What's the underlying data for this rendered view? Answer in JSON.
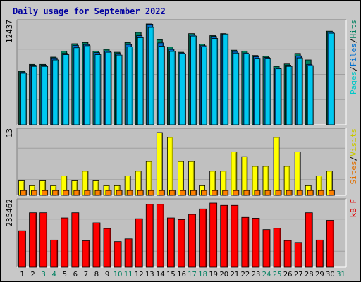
{
  "title": "Daily usage for September 2022",
  "chart_data": [
    {
      "type": "bar",
      "panel": "hits-files-pages",
      "categories": [
        "1",
        "2",
        "3",
        "4",
        "5",
        "6",
        "7",
        "8",
        "9",
        "10",
        "11",
        "12",
        "13",
        "14",
        "15",
        "16",
        "17",
        "18",
        "19",
        "20",
        "21",
        "22",
        "23",
        "24",
        "25",
        "26",
        "27",
        "28",
        "29",
        "30",
        "31"
      ],
      "max_label": "12437",
      "ylim": [
        0,
        12437
      ],
      "legend": [
        {
          "text": "Pages",
          "color": "#00c8c8"
        },
        {
          "text": "/",
          "color": "#000000"
        },
        {
          "text": "Files",
          "color": "#0070d0"
        },
        {
          "text": "/",
          "color": "#000000"
        },
        {
          "text": "Hits",
          "color": "#008060"
        }
      ],
      "series": [
        {
          "name": "Hits",
          "color": "#008060",
          "values": [
            6600,
            7450,
            7450,
            8350,
            9100,
            10000,
            10150,
            9100,
            9300,
            8950,
            10150,
            11400,
            12437,
            10500,
            9600,
            8950,
            11250,
            9950,
            11000,
            11250,
            9200,
            9100,
            8550,
            8450,
            7200,
            7500,
            8800,
            8000,
            null,
            11550,
            null
          ]
        },
        {
          "name": "Files",
          "color": "#0070d0",
          "values": [
            6500,
            7350,
            7350,
            8250,
            8800,
            9800,
            9900,
            8900,
            9100,
            8800,
            9900,
            11000,
            12400,
            10100,
            9300,
            8850,
            11100,
            9750,
            10900,
            11150,
            9050,
            8850,
            8400,
            8300,
            7000,
            7350,
            8500,
            7450,
            null,
            11450,
            null
          ]
        },
        {
          "name": "Pages",
          "color": "#00c8f0",
          "values": [
            6350,
            7200,
            7200,
            8000,
            8650,
            9500,
            9750,
            8650,
            8950,
            8600,
            9600,
            10750,
            12000,
            9700,
            9050,
            8750,
            10950,
            9600,
            10650,
            11200,
            8850,
            8750,
            8200,
            8200,
            6900,
            7200,
            8250,
            7300,
            null,
            11300,
            null
          ]
        }
      ]
    },
    {
      "type": "bar",
      "panel": "visits-sites",
      "categories": [
        "1",
        "2",
        "3",
        "4",
        "5",
        "6",
        "7",
        "8",
        "9",
        "10",
        "11",
        "12",
        "13",
        "14",
        "15",
        "16",
        "17",
        "18",
        "19",
        "20",
        "21",
        "22",
        "23",
        "24",
        "25",
        "26",
        "27",
        "28",
        "29",
        "30",
        "31"
      ],
      "max_label": "13",
      "ylim": [
        0,
        13
      ],
      "legend": [
        {
          "text": "Sites",
          "color": "#e07000"
        },
        {
          "text": "/",
          "color": "#000000"
        },
        {
          "text": "Visits",
          "color": "#c8c800"
        }
      ],
      "series": [
        {
          "name": "Visits",
          "color": "#ffff00",
          "values": [
            3,
            2,
            3,
            2,
            4,
            3,
            5,
            3,
            2,
            2,
            4,
            5,
            7,
            13,
            12,
            7,
            7,
            2,
            5,
            5,
            9,
            8,
            6,
            6,
            12,
            6,
            9,
            2,
            4,
            5,
            null
          ]
        },
        {
          "name": "Sites",
          "color": "#ff8000",
          "values": [
            1,
            1,
            1,
            1,
            1,
            1,
            1,
            1,
            1,
            1,
            1,
            1,
            1,
            1,
            1,
            1,
            1,
            1,
            1,
            1,
            1,
            1,
            1,
            1,
            1,
            1,
            1,
            1,
            1,
            1,
            null
          ]
        }
      ]
    },
    {
      "type": "bar",
      "panel": "kbytes",
      "categories": [
        "1",
        "2",
        "3",
        "4",
        "5",
        "6",
        "7",
        "8",
        "9",
        "10",
        "11",
        "12",
        "13",
        "14",
        "15",
        "16",
        "17",
        "18",
        "19",
        "20",
        "21",
        "22",
        "23",
        "24",
        "25",
        "26",
        "27",
        "28",
        "29",
        "30",
        "31"
      ],
      "max_label": "235462",
      "ylim": [
        0,
        235462
      ],
      "legend": [
        {
          "text": "kB F",
          "color": "#e00000"
        }
      ],
      "series": [
        {
          "name": "kB F",
          "color": "#ff0000",
          "values": [
            134000,
            200000,
            200000,
            100000,
            181000,
            200000,
            97000,
            163000,
            142000,
            94000,
            104000,
            178000,
            231000,
            231000,
            181000,
            175000,
            194000,
            214000,
            235462,
            227000,
            227000,
            183000,
            180000,
            138000,
            143000,
            98000,
            91000,
            200000,
            100000,
            172000,
            null
          ]
        }
      ]
    }
  ],
  "day_label_colors": {
    "weekday": "#000000",
    "weekend": "#008060"
  },
  "weekend_days": [
    "3",
    "4",
    "10",
    "11",
    "17",
    "18",
    "24",
    "25",
    "31"
  ]
}
